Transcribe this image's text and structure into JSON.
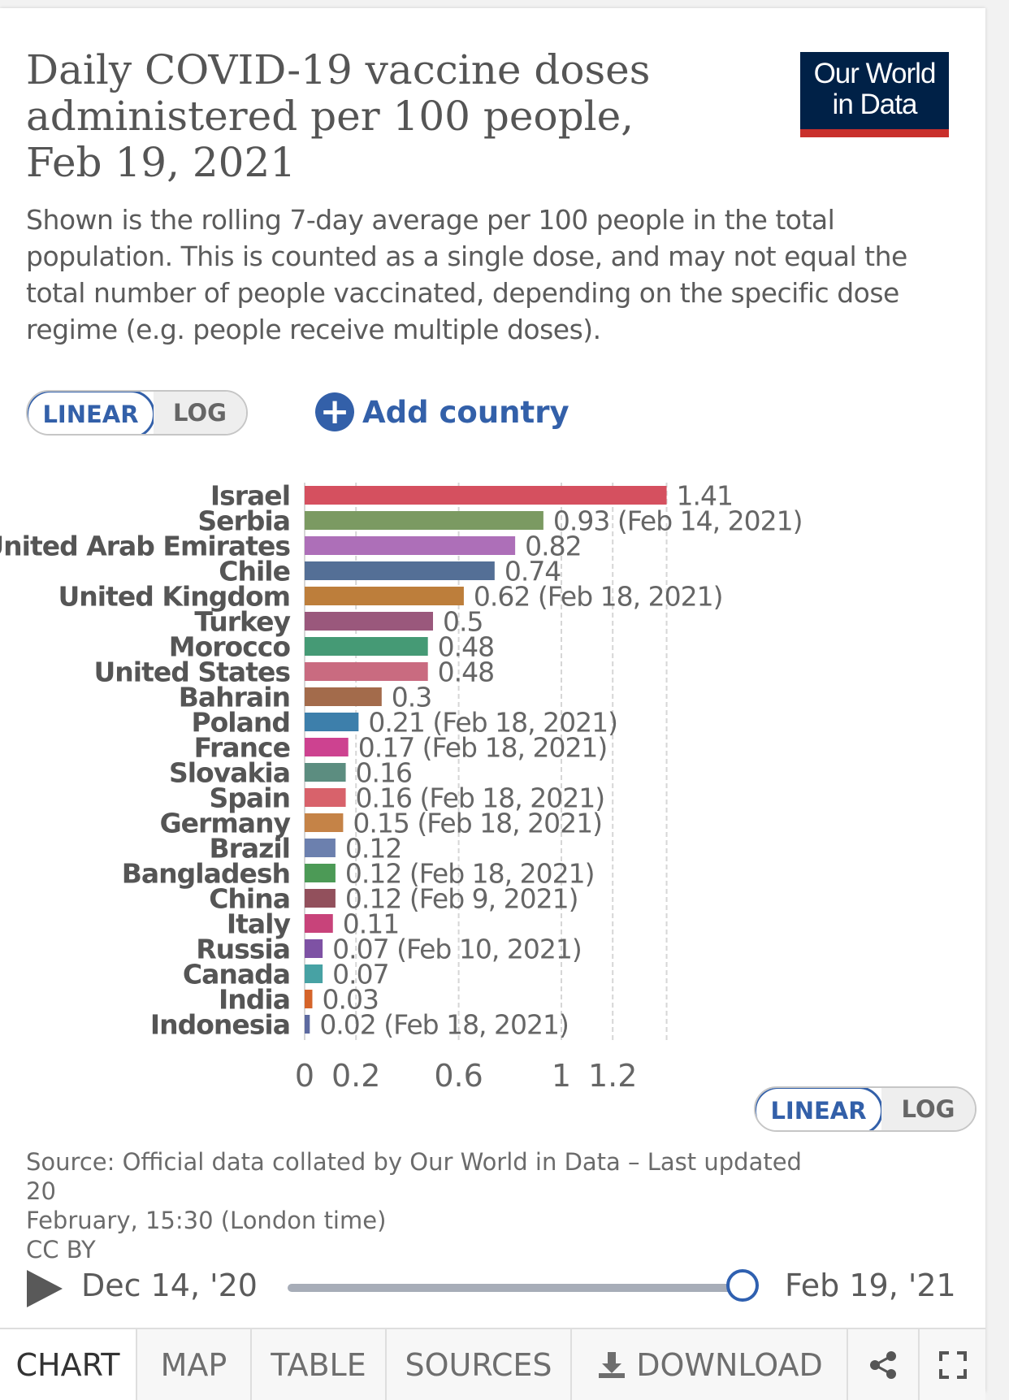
{
  "title_lines": [
    "Daily COVID-19 vaccine doses",
    "administered per 100 people,",
    "Feb 19, 2021"
  ],
  "logo": {
    "line1": "Our World",
    "line2": "in Data"
  },
  "subtitle": "Shown is the rolling 7-day average per 100 people in the total population. This is counted as a single dose, and may not equal the total number of people vaccinated, depending on the specific dose regime (e.g. people receive multiple doses).",
  "scale_toggle": {
    "linear": "LINEAR",
    "log": "LOG"
  },
  "add_country": "Add country",
  "chart_data": {
    "type": "bar",
    "orientation": "horizontal",
    "categories": [
      "Israel",
      "Serbia",
      "United Arab Emirates",
      "Chile",
      "United Kingdom",
      "Turkey",
      "Morocco",
      "United States",
      "Bahrain",
      "Poland",
      "France",
      "Slovakia",
      "Spain",
      "Germany",
      "Brazil",
      "Bangladesh",
      "China",
      "Italy",
      "Russia",
      "Canada",
      "India",
      "Indonesia"
    ],
    "values": [
      1.41,
      0.93,
      0.82,
      0.74,
      0.62,
      0.5,
      0.48,
      0.48,
      0.3,
      0.21,
      0.17,
      0.16,
      0.16,
      0.15,
      0.12,
      0.12,
      0.12,
      0.11,
      0.07,
      0.07,
      0.03,
      0.02
    ],
    "value_labels": [
      "1.41",
      "0.93 (Feb 14, 2021)",
      "0.82",
      "0.74",
      "0.62 (Feb 18, 2021)",
      "0.5",
      "0.48",
      "0.48",
      "0.3",
      "0.21 (Feb 18, 2021)",
      "0.17 (Feb 18, 2021)",
      "0.16",
      "0.16 (Feb 18, 2021)",
      "0.15 (Feb 18, 2021)",
      "0.12",
      "0.12 (Feb 18, 2021)",
      "0.12 (Feb 9, 2021)",
      "0.11",
      "0.07 (Feb 10, 2021)",
      "0.07",
      "0.03",
      "0.02 (Feb 18, 2021)"
    ],
    "colors": [
      "#d5505f",
      "#7b9a62",
      "#ad6fb8",
      "#546f96",
      "#bd7e3b",
      "#9a587c",
      "#459a75",
      "#c96b80",
      "#a36b4b",
      "#3d7fab",
      "#cd4290",
      "#5c8d80",
      "#d8626b",
      "#c58347",
      "#6c80ae",
      "#4c9a56",
      "#92505c",
      "#c8437a",
      "#7e52a4",
      "#47a2a4",
      "#d5642a",
      "#5d6aa0"
    ],
    "xticks": [
      0,
      0.2,
      0.6,
      1,
      1.2
    ],
    "xlim": [
      0,
      1.41
    ],
    "grid": true,
    "xlabel": "",
    "ylabel": ""
  },
  "source": {
    "line1": "Source: Official data collated by Our World in Data – Last updated 20",
    "line2": "February, 15:30 (London time)",
    "line3": "CC BY"
  },
  "timeline": {
    "start": "Dec 14, '20",
    "end": "Feb 19, '21"
  },
  "footer_tabs": {
    "chart": "CHART",
    "map": "MAP",
    "table": "TABLE",
    "sources": "SOURCES",
    "download": "DOWNLOAD"
  }
}
